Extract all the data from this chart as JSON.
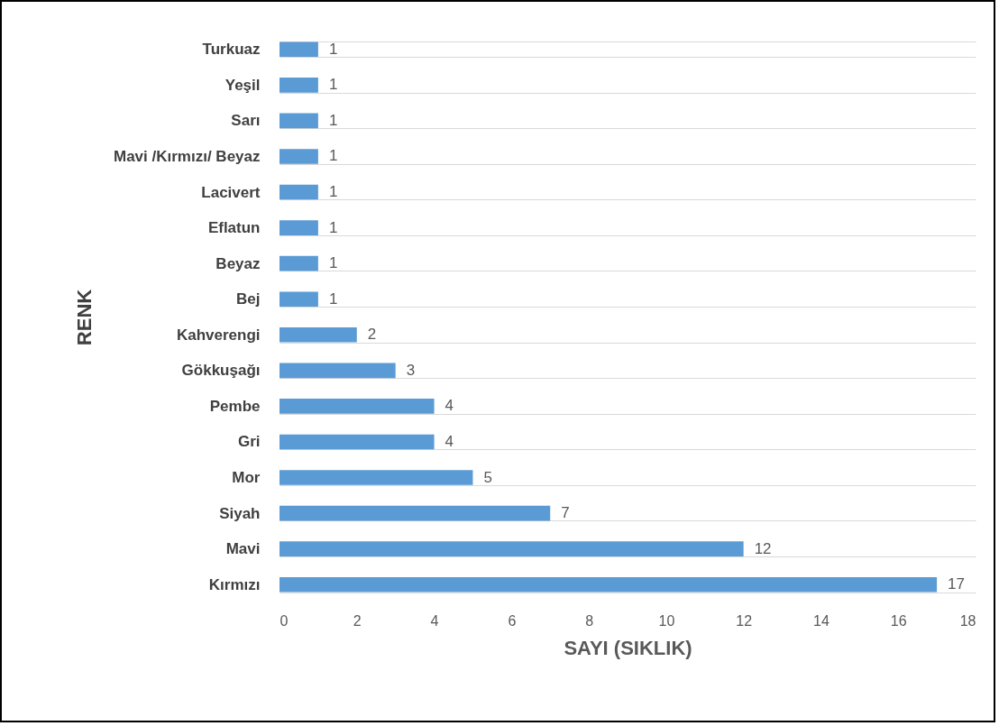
{
  "chart_data": {
    "type": "bar",
    "orientation": "horizontal",
    "xlabel": "SAYI (SIKLIK)",
    "ylabel": "RENK",
    "categories": [
      "Turkuaz",
      "Yeşil",
      "Sarı",
      "Mavi /Kırmızı/ Beyaz",
      "Lacivert",
      "Eflatun",
      "Beyaz",
      "Bej",
      "Kahverengi",
      "Gökkuşağı",
      "Pembe",
      "Gri",
      "Mor",
      "Siyah",
      "Mavi",
      "Kırmızı"
    ],
    "values": [
      1,
      1,
      1,
      1,
      1,
      1,
      1,
      1,
      2,
      3,
      4,
      4,
      5,
      7,
      12,
      17
    ],
    "color": "#5b9bd5",
    "xlim": [
      0,
      18
    ],
    "xticks": [
      0,
      2,
      4,
      6,
      8,
      10,
      12,
      14,
      16,
      18
    ],
    "grid": "y",
    "data_labels": true
  }
}
